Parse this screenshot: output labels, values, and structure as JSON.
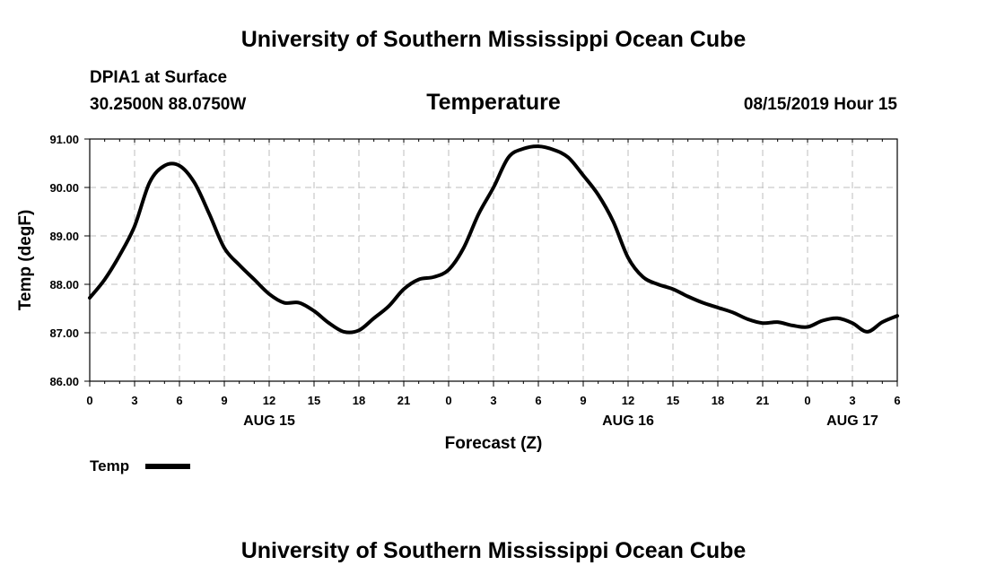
{
  "header": {
    "top_title": "University of Southern Mississippi Ocean Cube",
    "station": "DPIA1 at Surface",
    "coords": "30.2500N 88.0750W",
    "datetime": "08/15/2019 Hour 15"
  },
  "footer": {
    "bottom_title": "University of Southern Mississippi Ocean Cube"
  },
  "chart_data": {
    "type": "line",
    "title": "Temperature",
    "xlabel": "Forecast (Z)",
    "ylabel": "Temp (degF)",
    "ylim": [
      86.0,
      91.0
    ],
    "yticks": [
      "86.00",
      "87.00",
      "88.00",
      "89.00",
      "90.00",
      "91.00"
    ],
    "xlim": [
      0,
      54
    ],
    "xtick_labels": [
      "0",
      "3",
      "6",
      "9",
      "12",
      "15",
      "18",
      "21",
      "0",
      "3",
      "6",
      "9",
      "12",
      "15",
      "18",
      "21",
      "0",
      "3",
      "6"
    ],
    "date_labels": [
      {
        "label": "AUG 15",
        "at_hour": 12
      },
      {
        "label": "AUG 16",
        "at_hour": 36
      },
      {
        "label": "AUG 17",
        "at_hour": 51
      }
    ],
    "grid": true,
    "legend": "bottom-left",
    "series": [
      {
        "name": "Temp",
        "color": "#000000",
        "x": [
          0,
          1,
          2,
          3,
          4,
          5,
          6,
          7,
          8,
          9,
          10,
          11,
          12,
          13,
          14,
          15,
          16,
          17,
          18,
          19,
          20,
          21,
          22,
          23,
          24,
          25,
          26,
          27,
          28,
          29,
          30,
          31,
          32,
          33,
          34,
          35,
          36,
          37,
          38,
          39,
          40,
          41,
          42,
          43,
          44,
          45,
          46,
          47,
          48,
          49,
          50,
          51,
          52,
          53,
          54
        ],
        "values": [
          87.72,
          88.1,
          88.6,
          89.2,
          90.1,
          90.45,
          90.45,
          90.1,
          89.45,
          88.75,
          88.4,
          88.1,
          87.8,
          87.62,
          87.62,
          87.45,
          87.2,
          87.02,
          87.05,
          87.3,
          87.55,
          87.9,
          88.1,
          88.15,
          88.3,
          88.75,
          89.45,
          90.0,
          90.62,
          90.8,
          90.85,
          90.78,
          90.62,
          90.25,
          89.85,
          89.3,
          88.55,
          88.15,
          88.0,
          87.9,
          87.75,
          87.62,
          87.52,
          87.42,
          87.28,
          87.2,
          87.22,
          87.15,
          87.12,
          87.25,
          87.3,
          87.2,
          87.02,
          87.22,
          87.35
        ]
      }
    ]
  }
}
